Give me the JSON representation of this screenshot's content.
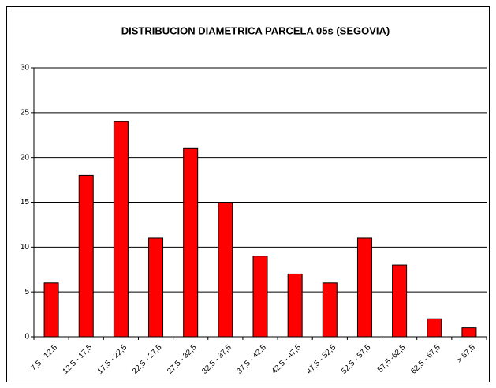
{
  "chart_data": {
    "type": "bar",
    "title": "DISTRIBUCION DIAMETRICA PARCELA 05s (SEGOVIA)",
    "categories": [
      "7,5 - 12,5",
      "12,5 - 17,5",
      "17,5 - 22,5",
      "22,5 - 27,5",
      "27,5 - 32,5",
      "32,5 - 37,5",
      "37,5 - 42,5",
      "42,5 - 47,5",
      "47,5 - 52,5",
      "52,5 - 57,5",
      "57,5 -62,5",
      "62,5 - 67,5",
      "> 67,5"
    ],
    "values": [
      6,
      18,
      24,
      11,
      21,
      15,
      9,
      7,
      6,
      11,
      8,
      2,
      1
    ],
    "color": "#ff0000",
    "ylim": [
      0,
      30
    ],
    "yticks": [
      0,
      5,
      10,
      15,
      20,
      25,
      30
    ],
    "grid": true
  }
}
